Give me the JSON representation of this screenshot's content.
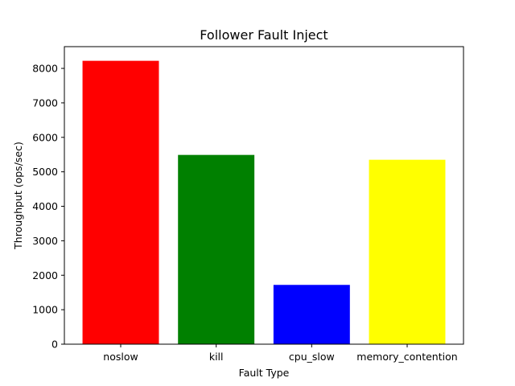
{
  "chart_data": {
    "type": "bar",
    "title": "Follower Fault Inject",
    "xlabel": "Fault Type",
    "ylabel": "Throughput (ops/sec)",
    "categories": [
      "noslow",
      "kill",
      "cpu_slow",
      "memory_contention"
    ],
    "values": [
      8220,
      5490,
      1720,
      5350
    ],
    "colors": [
      "#ff0000",
      "#008000",
      "#0000ff",
      "#ffff00"
    ],
    "yticks": [
      0,
      1000,
      2000,
      3000,
      4000,
      5000,
      6000,
      7000,
      8000
    ],
    "ylim": [
      0,
      8631
    ],
    "grid": false,
    "legend": "none"
  }
}
